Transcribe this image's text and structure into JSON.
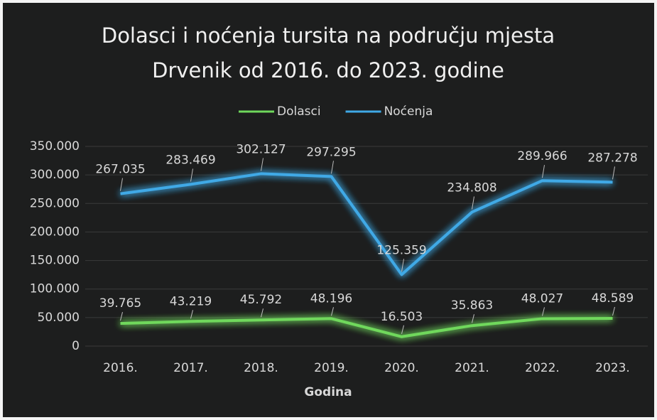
{
  "chart_data": {
    "type": "line",
    "title": [
      "Dolasci i noćenja tursita na području mjesta",
      "Drvenik od 2016. do 2023. godine"
    ],
    "x_label": "Godina",
    "categories": [
      "2016.",
      "2017.",
      "2018.",
      "2019.",
      "2020.",
      "2021.",
      "2022.",
      "2023."
    ],
    "series": [
      {
        "name": "Dolasci",
        "color": "#6fd85c",
        "values": [
          39765,
          43219,
          45792,
          48196,
          16503,
          35863,
          48027,
          48589
        ],
        "value_labels": [
          "39.765",
          "43.219",
          "45.792",
          "48.196",
          "16.503",
          "35.863",
          "48.027",
          "48.589"
        ]
      },
      {
        "name": "Noćenja",
        "color": "#3fa9e6",
        "values": [
          267035,
          283469,
          302127,
          297295,
          125359,
          234808,
          289966,
          287278
        ],
        "value_labels": [
          "267.035",
          "283.469",
          "302.127",
          "297.295",
          "125.359",
          "234.808",
          "289.966",
          "287.278"
        ]
      }
    ],
    "ylim": [
      0,
      350000
    ],
    "yticks": [
      0,
      {
        "value": 50000,
        "label": "50.000"
      },
      {
        "value": 100000,
        "label": "100.000"
      },
      {
        "value": 150000,
        "label": "150.000"
      },
      {
        "value": 200000,
        "label": "200.000"
      },
      {
        "value": 250000,
        "label": "250.000"
      },
      {
        "value": 300000,
        "label": "300.000"
      },
      {
        "value": 350000,
        "label": "350.000"
      }
    ],
    "grid": true,
    "legend": "top"
  }
}
